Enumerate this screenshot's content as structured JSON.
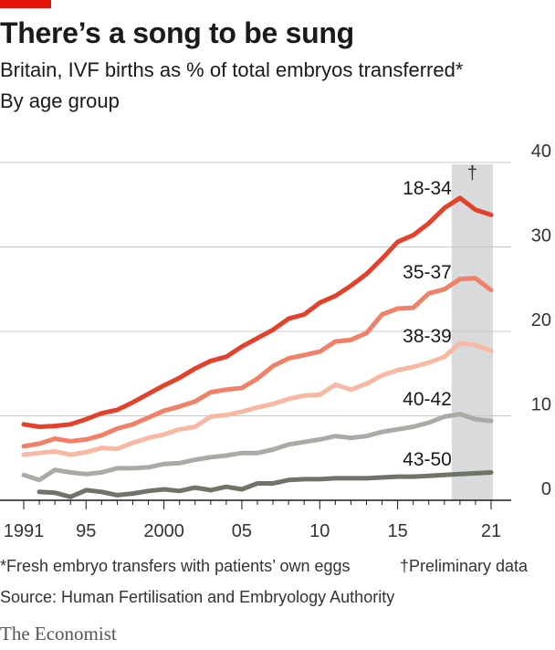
{
  "header": {
    "title": "There’s a song to be sung",
    "subtitle": "Britain, IVF births as % of total embryos transferred*",
    "unit_note": "By age group"
  },
  "footer": {
    "footnote_star": "*Fresh embryo transfers with patients’ own eggs",
    "footnote_dagger": "†Preliminary data",
    "source": "Source: Human Fertilisation and Embryology Authority",
    "brand": "The Economist"
  },
  "chart_data": {
    "type": "line",
    "x": [
      1991,
      1992,
      1993,
      1994,
      1995,
      1996,
      1997,
      1998,
      1999,
      2000,
      2001,
      2002,
      2003,
      2004,
      2005,
      2006,
      2007,
      2008,
      2009,
      2010,
      2011,
      2012,
      2013,
      2014,
      2015,
      2016,
      2017,
      2018,
      2019,
      2020,
      2021
    ],
    "x_tick_labels": [
      "1991",
      "95",
      "2000",
      "05",
      "10",
      "15",
      "21"
    ],
    "x_tick_values": [
      1991,
      1995,
      2000,
      2005,
      2010,
      2015,
      2021
    ],
    "ylim": [
      0,
      40
    ],
    "y_ticks": [
      0,
      10,
      20,
      30,
      40
    ],
    "y_tick_labels": [
      "0",
      "10",
      "20",
      "30",
      "40"
    ],
    "grid": "horizontal",
    "preliminary_period": {
      "from": 2019,
      "to": 2021,
      "mark": "†"
    },
    "colors": {
      "18-34": "#e3412c",
      "35-37": "#f08068",
      "38-39": "#f8b8a4",
      "40-42": "#a8aca4",
      "43-50": "#6e7568",
      "shade": "#d9dadb",
      "grid": "#c8c8c8"
    },
    "series": [
      {
        "name": "18-34",
        "values": [
          9.0,
          8.7,
          8.8,
          9.0,
          9.6,
          10.3,
          10.7,
          11.6,
          12.6,
          13.6,
          14.5,
          15.6,
          16.5,
          17.0,
          18.2,
          19.2,
          20.2,
          21.5,
          22.0,
          23.4,
          24.2,
          25.4,
          26.8,
          28.6,
          30.6,
          31.4,
          32.8,
          34.6,
          35.8,
          34.4,
          33.8
        ]
      },
      {
        "name": "35-37",
        "values": [
          6.4,
          6.7,
          7.3,
          7.0,
          7.2,
          7.7,
          8.5,
          9.0,
          9.8,
          10.6,
          11.1,
          11.7,
          12.8,
          13.1,
          13.3,
          14.4,
          15.9,
          16.8,
          17.2,
          17.6,
          18.8,
          19.0,
          19.8,
          22.0,
          22.7,
          22.8,
          24.5,
          25.0,
          26.2,
          26.3,
          24.9
        ]
      },
      {
        "name": "38-39",
        "values": [
          5.4,
          5.6,
          5.8,
          5.4,
          5.7,
          6.2,
          6.1,
          6.8,
          7.4,
          7.8,
          8.4,
          8.7,
          9.9,
          10.1,
          10.5,
          11.0,
          11.4,
          12.0,
          12.4,
          12.5,
          13.7,
          13.1,
          13.8,
          14.8,
          15.4,
          15.8,
          16.3,
          17.0,
          18.6,
          18.4,
          17.7
        ]
      },
      {
        "name": "40-42",
        "values": [
          3.0,
          2.4,
          3.6,
          3.3,
          3.1,
          3.3,
          3.8,
          3.8,
          3.9,
          4.3,
          4.4,
          4.8,
          5.1,
          5.3,
          5.6,
          5.6,
          6.0,
          6.6,
          6.9,
          7.2,
          7.6,
          7.4,
          7.6,
          8.1,
          8.4,
          8.7,
          9.2,
          9.9,
          10.2,
          9.6,
          9.4
        ]
      },
      {
        "name": "43-50",
        "values": [
          null,
          1.0,
          0.9,
          0.4,
          1.2,
          1.0,
          0.6,
          0.8,
          1.1,
          1.3,
          1.1,
          1.5,
          1.2,
          1.6,
          1.3,
          2.0,
          2.0,
          2.4,
          2.5,
          2.5,
          2.6,
          2.6,
          2.6,
          2.7,
          2.8,
          2.8,
          2.9,
          3.0,
          3.1,
          3.2,
          3.3
        ]
      }
    ]
  }
}
